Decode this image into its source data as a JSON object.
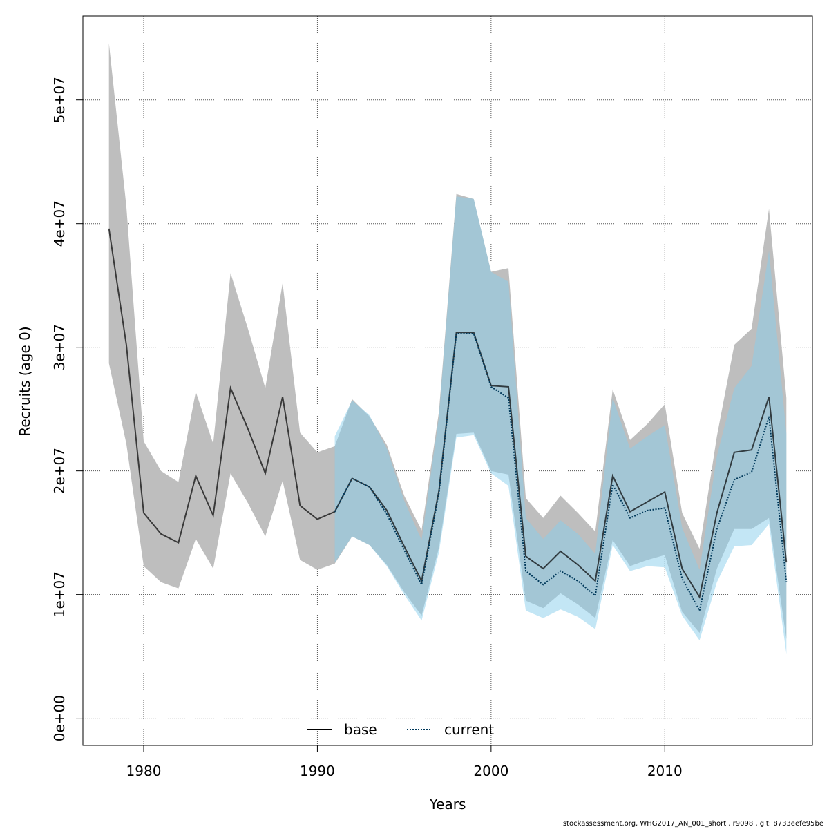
{
  "chart_data": {
    "type": "line",
    "title": "",
    "xlabel": "Years",
    "ylabel": "Recruits (age 0)",
    "xlim": [
      1976.5,
      2018.5
    ],
    "ylim": [
      -2200000,
      56800000
    ],
    "x_ticks": [
      1980,
      1990,
      2000,
      2010
    ],
    "x_tick_labels": [
      "1980",
      "1990",
      "2000",
      "2010"
    ],
    "y_ticks": [
      0,
      10000000,
      20000000,
      30000000,
      40000000,
      50000000
    ],
    "y_tick_labels": [
      "0e+00",
      "1e+07",
      "2e+07",
      "3e+07",
      "4e+07",
      "5e+07"
    ],
    "grid": true,
    "legend": {
      "position": "bottom-center",
      "entries": [
        {
          "label": "base",
          "style": "solid"
        },
        {
          "label": "current",
          "style": "dotted"
        }
      ]
    },
    "colors": {
      "base_line": "#000000",
      "base_band": "#bebebe",
      "current_line": "#00395b",
      "current_band": "#87ceeb"
    },
    "series": [
      {
        "name": "base",
        "x": [
          1978,
          1979,
          1980,
          1981,
          1982,
          1983,
          1984,
          1985,
          1986,
          1987,
          1988,
          1989,
          1990,
          1991,
          1992,
          1993,
          1994,
          1995,
          1996,
          1997,
          1998,
          1999,
          2000,
          2001,
          2002,
          2003,
          2004,
          2005,
          2006,
          2007,
          2008,
          2009,
          2010,
          2011,
          2012,
          2013,
          2014,
          2015,
          2016,
          2017
        ],
        "y": [
          39600000,
          30200000,
          16600000,
          14900000,
          14200000,
          19600000,
          16400000,
          26700000,
          23400000,
          19800000,
          26000000,
          17200000,
          16100000,
          16700000,
          19400000,
          18700000,
          16800000,
          13900000,
          11100000,
          18400000,
          31200000,
          31200000,
          26900000,
          26800000,
          13100000,
          12100000,
          13500000,
          12400000,
          11100000,
          19600000,
          16700000,
          17500000,
          18300000,
          12100000,
          9800000,
          16600000,
          21500000,
          21700000,
          26000000,
          12600000
        ],
        "lower": [
          28700000,
          22200000,
          12300000,
          11000000,
          10500000,
          14500000,
          12100000,
          19800000,
          17400000,
          14700000,
          19200000,
          12800000,
          12000000,
          12500000,
          14700000,
          14000000,
          12400000,
          10200000,
          8300000,
          13800000,
          23000000,
          23100000,
          20000000,
          19700000,
          9500000,
          8900000,
          10100000,
          9200000,
          8100000,
          14400000,
          12300000,
          12800000,
          13200000,
          8600000,
          6900000,
          12100000,
          15300000,
          15300000,
          16200000,
          6400000
        ],
        "upper": [
          54600000,
          41400000,
          22400000,
          20000000,
          19100000,
          26400000,
          22200000,
          36000000,
          31500000,
          26700000,
          35200000,
          23100000,
          21500000,
          22000000,
          25800000,
          24400000,
          22100000,
          18000000,
          15200000,
          24800000,
          42400000,
          42000000,
          36100000,
          36400000,
          17800000,
          16200000,
          18000000,
          16600000,
          15100000,
          26600000,
          22500000,
          23800000,
          25400000,
          16600000,
          13700000,
          22800000,
          30200000,
          31500000,
          41200000,
          25900000
        ]
      },
      {
        "name": "current",
        "x": [
          1991,
          1992,
          1993,
          1994,
          1995,
          1996,
          1997,
          1998,
          1999,
          2000,
          2001,
          2002,
          2003,
          2004,
          2005,
          2006,
          2007,
          2008,
          2009,
          2010,
          2011,
          2012,
          2013,
          2014,
          2015,
          2016,
          2017
        ],
        "y": [
          16700000,
          19400000,
          18700000,
          16500000,
          13600000,
          10800000,
          18200000,
          31100000,
          31100000,
          26800000,
          25900000,
          11900000,
          10800000,
          11900000,
          11100000,
          9900000,
          18900000,
          16200000,
          16800000,
          17000000,
          11300000,
          8700000,
          15300000,
          19300000,
          19900000,
          24400000,
          11000000
        ],
        "lower": [
          12600000,
          14700000,
          14000000,
          12300000,
          10000000,
          7900000,
          13400000,
          22700000,
          22900000,
          19800000,
          18800000,
          8700000,
          8100000,
          8800000,
          8200000,
          7200000,
          14000000,
          11900000,
          12300000,
          12200000,
          8300000,
          6300000,
          11000000,
          13900000,
          14000000,
          15700000,
          5200000
        ],
        "upper": [
          22800000,
          25700000,
          24500000,
          21800000,
          17600000,
          14400000,
          24400000,
          42200000,
          42000000,
          36100000,
          35300000,
          16200000,
          14500000,
          16000000,
          14900000,
          13300000,
          25900000,
          21800000,
          22800000,
          23700000,
          15400000,
          12000000,
          21200000,
          26700000,
          28500000,
          37800000,
          23000000
        ]
      }
    ]
  },
  "footer_text": "stockassessment.org, WHG2017_AN_001_short , r9098 , git: 8733eefe95be"
}
